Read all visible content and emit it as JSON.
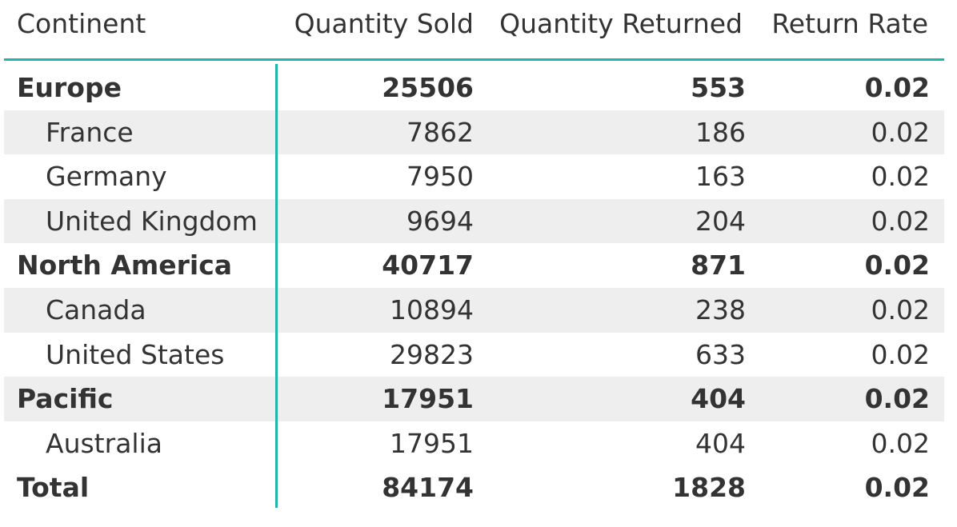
{
  "chart_data": {
    "type": "table",
    "columns": [
      "Continent",
      "Quantity Sold",
      "Quantity Returned",
      "Return Rate"
    ],
    "rows": [
      {
        "label": "Europe",
        "level": 0,
        "quantity_sold": "25506",
        "quantity_returned": "553",
        "return_rate": "0.02"
      },
      {
        "label": "France",
        "level": 1,
        "quantity_sold": "7862",
        "quantity_returned": "186",
        "return_rate": "0.02"
      },
      {
        "label": "Germany",
        "level": 1,
        "quantity_sold": "7950",
        "quantity_returned": "163",
        "return_rate": "0.02"
      },
      {
        "label": "United Kingdom",
        "level": 1,
        "quantity_sold": "9694",
        "quantity_returned": "204",
        "return_rate": "0.02"
      },
      {
        "label": "North America",
        "level": 0,
        "quantity_sold": "40717",
        "quantity_returned": "871",
        "return_rate": "0.02"
      },
      {
        "label": "Canada",
        "level": 1,
        "quantity_sold": "10894",
        "quantity_returned": "238",
        "return_rate": "0.02"
      },
      {
        "label": "United States",
        "level": 1,
        "quantity_sold": "29823",
        "quantity_returned": "633",
        "return_rate": "0.02"
      },
      {
        "label": "Pacific",
        "level": 0,
        "quantity_sold": "17951",
        "quantity_returned": "404",
        "return_rate": "0.02"
      },
      {
        "label": "Australia",
        "level": 1,
        "quantity_sold": "17951",
        "quantity_returned": "404",
        "return_rate": "0.02"
      },
      {
        "label": "Total",
        "level": 0,
        "quantity_sold": "84174",
        "quantity_returned": "1828",
        "return_rate": "0.02"
      }
    ],
    "accent_color": "#1FB5A8",
    "band_color": "#EEEEEE"
  }
}
